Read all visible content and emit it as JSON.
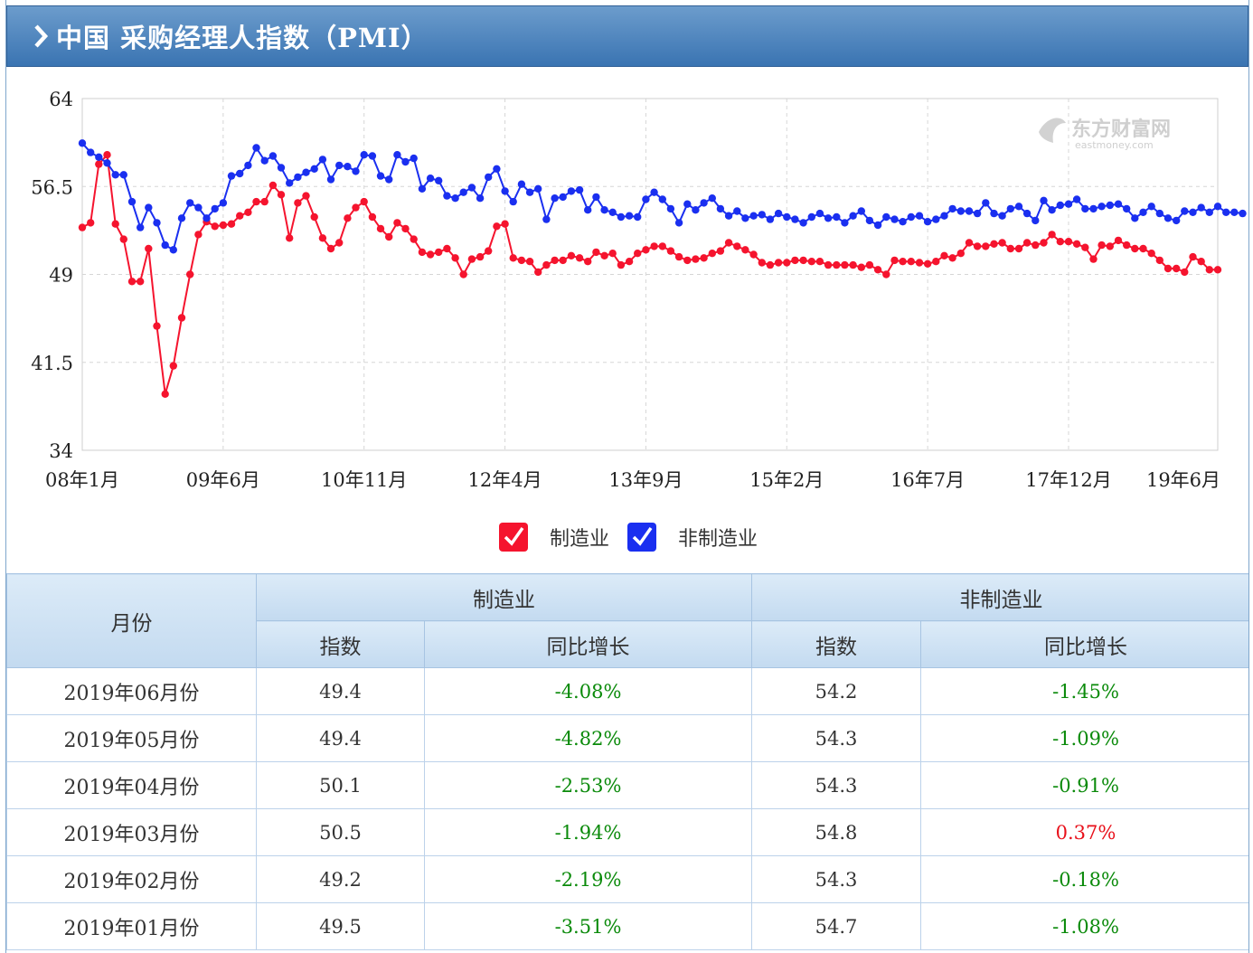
{
  "header": {
    "title": "中国 采购经理人指数（PMI）"
  },
  "chart_data": {
    "type": "line",
    "watermark": "东方财富网 eastmoney.com",
    "ylim": [
      34,
      64
    ],
    "yticks": [
      "64",
      "56.5",
      "49",
      "41.5",
      "34"
    ],
    "xtick_labels": [
      "08年1月",
      "09年6月",
      "10年11月",
      "12年4月",
      "13年9月",
      "15年2月",
      "16年7月",
      "17年12月",
      "19年6月"
    ],
    "x_start": "2008-01",
    "x_end": "2019-06",
    "series": [
      {
        "name": "制造业",
        "color": "#f5142e",
        "values": [
          53.0,
          53.4,
          58.4,
          59.2,
          53.3,
          52.0,
          48.4,
          48.4,
          51.2,
          44.6,
          38.8,
          41.2,
          45.3,
          49.0,
          52.4,
          53.5,
          53.1,
          53.2,
          53.3,
          54.0,
          54.3,
          55.2,
          55.2,
          56.6,
          55.8,
          52.1,
          55.1,
          55.7,
          53.9,
          52.1,
          51.2,
          51.7,
          53.8,
          54.7,
          55.2,
          53.9,
          52.9,
          52.2,
          53.4,
          52.9,
          52.0,
          50.9,
          50.7,
          50.9,
          51.2,
          50.4,
          49.0,
          50.3,
          50.5,
          51.0,
          53.1,
          53.3,
          50.4,
          50.2,
          50.1,
          49.2,
          49.8,
          50.2,
          50.2,
          50.6,
          50.4,
          50.1,
          50.9,
          50.6,
          50.8,
          49.8,
          50.1,
          50.8,
          51.1,
          51.4,
          51.4,
          51.0,
          50.5,
          50.2,
          50.3,
          50.4,
          50.8,
          51.0,
          51.7,
          51.4,
          51.1,
          50.7,
          50.0,
          49.8,
          50.0,
          50.0,
          50.2,
          50.2,
          50.1,
          50.1,
          49.8,
          49.8,
          49.8,
          49.8,
          49.6,
          49.8,
          49.4,
          49.0,
          50.2,
          50.1,
          50.1,
          50.0,
          49.9,
          50.1,
          50.6,
          50.4,
          50.8,
          51.7,
          51.4,
          51.4,
          51.6,
          51.7,
          51.2,
          51.2,
          51.7,
          51.5,
          51.7,
          52.4,
          51.8,
          51.8,
          51.6,
          51.3,
          50.3,
          51.5,
          51.4,
          51.9,
          51.5,
          51.2,
          51.2,
          50.8,
          50.2,
          49.5,
          49.5,
          49.2,
          50.5,
          50.1,
          49.4,
          49.4
        ]
      },
      {
        "name": "非制造业",
        "color": "#1a2ff0",
        "values": [
          60.2,
          59.4,
          59.0,
          58.5,
          57.5,
          57.5,
          55.2,
          53.0,
          54.7,
          53.4,
          51.5,
          51.1,
          53.8,
          55.1,
          54.7,
          53.8,
          54.6,
          55.1,
          57.4,
          57.6,
          58.3,
          59.8,
          58.7,
          59.1,
          58.1,
          56.8,
          57.3,
          57.7,
          58.0,
          58.8,
          57.1,
          58.3,
          58.2,
          57.8,
          59.2,
          59.1,
          57.4,
          57.1,
          59.2,
          58.6,
          58.9,
          56.3,
          57.2,
          57.0,
          55.7,
          55.5,
          56.0,
          56.4,
          55.5,
          57.3,
          58.0,
          56.1,
          55.2,
          56.7,
          56.0,
          56.3,
          53.7,
          55.5,
          55.6,
          56.1,
          56.2,
          54.5,
          55.6,
          54.5,
          54.3,
          53.9,
          54.0,
          53.9,
          55.4,
          56.0,
          55.4,
          54.6,
          53.4,
          55.0,
          54.5,
          55.1,
          55.5,
          54.6,
          54.0,
          54.4,
          53.8,
          54.0,
          54.1,
          53.7,
          54.2,
          53.9,
          53.7,
          53.4,
          53.9,
          54.2,
          53.8,
          53.9,
          53.4,
          54.0,
          54.4,
          53.6,
          53.2,
          53.9,
          53.7,
          53.5,
          53.9,
          54.0,
          53.5,
          53.7,
          54.0,
          54.6,
          54.4,
          54.4,
          54.2,
          55.1,
          54.2,
          54.0,
          54.6,
          54.8,
          54.2,
          53.6,
          55.3,
          54.5,
          54.9,
          55.0,
          55.4,
          54.6,
          54.6,
          54.8,
          54.9,
          55.0,
          54.6,
          53.8,
          54.3,
          54.8,
          54.2,
          53.8,
          53.6,
          54.4,
          54.3,
          54.7,
          54.3,
          54.8,
          54.3,
          54.3,
          54.2
        ]
      }
    ],
    "legend": {
      "position": "bottom-center",
      "items": [
        "制造业",
        "非制造业"
      ]
    }
  },
  "table": {
    "col_month": "月份",
    "group_mfg": "制造业",
    "group_nonmfg": "非制造业",
    "sub_index": "指数",
    "sub_yoy": "同比增长",
    "rows": [
      {
        "month": "2019年06月份",
        "mfg_index": "49.4",
        "mfg_yoy": "-4.08%",
        "non_index": "54.2",
        "non_yoy": "-1.45%"
      },
      {
        "month": "2019年05月份",
        "mfg_index": "49.4",
        "mfg_yoy": "-4.82%",
        "non_index": "54.3",
        "non_yoy": "-1.09%"
      },
      {
        "month": "2019年04月份",
        "mfg_index": "50.1",
        "mfg_yoy": "-2.53%",
        "non_index": "54.3",
        "non_yoy": "-0.91%"
      },
      {
        "month": "2019年03月份",
        "mfg_index": "50.5",
        "mfg_yoy": "-1.94%",
        "non_index": "54.8",
        "non_yoy": "0.37%"
      },
      {
        "month": "2019年02月份",
        "mfg_index": "49.2",
        "mfg_yoy": "-2.19%",
        "non_index": "54.3",
        "non_yoy": "-0.18%"
      },
      {
        "month": "2019年01月份",
        "mfg_index": "49.5",
        "mfg_yoy": "-3.51%",
        "non_index": "54.7",
        "non_yoy": "-1.08%"
      }
    ],
    "colors": {
      "negative": "#0a8a0a",
      "positive": "#e8101a"
    }
  }
}
